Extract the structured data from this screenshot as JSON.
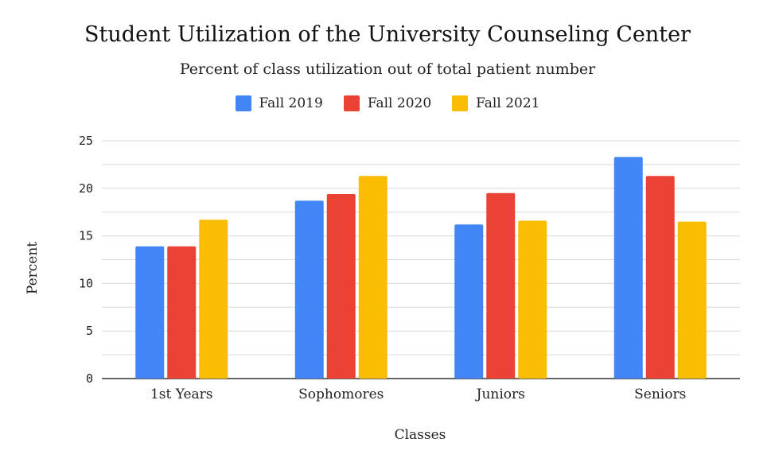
{
  "chart_data": {
    "type": "bar",
    "title": "Student Utilization of the University Counseling Center",
    "subtitle": "Percent of class utilization out of total patient number",
    "xlabel": "Classes",
    "ylabel": "Percent",
    "categories": [
      "1st Years",
      "Sophomores",
      "Juniors",
      "Seniors"
    ],
    "series": [
      {
        "name": "Fall 2019",
        "color": "#4285F4",
        "values": [
          13.9,
          18.7,
          16.2,
          23.3
        ]
      },
      {
        "name": "Fall 2020",
        "color": "#EA4335",
        "values": [
          13.9,
          19.4,
          19.5,
          21.3
        ]
      },
      {
        "name": "Fall 2021",
        "color": "#FBBC04",
        "values": [
          16.7,
          21.3,
          16.6,
          16.5
        ]
      }
    ],
    "ylim": [
      0,
      25
    ],
    "yticks": [
      "0",
      "5",
      "10",
      "15",
      "20",
      "25"
    ],
    "grid": true,
    "legend_position": "top"
  }
}
